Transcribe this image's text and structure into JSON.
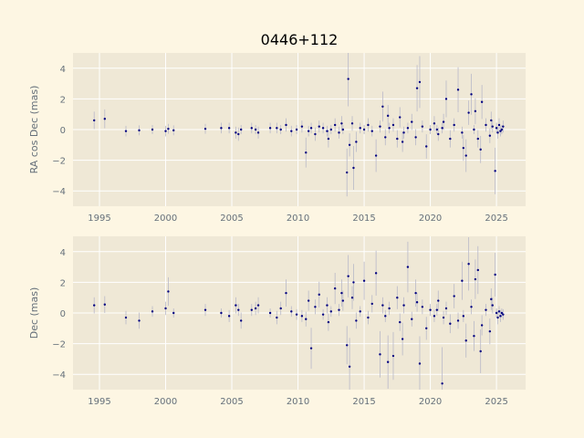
{
  "chart_data": [
    {
      "type": "scatter",
      "title": "0446+112",
      "ylabel": "RA cos Dec (mas)",
      "xlabel": "",
      "xlim": [
        1993.0,
        2027.2
      ],
      "ylim": [
        -5,
        5
      ],
      "xticks": [
        "1995",
        "2000",
        "2005",
        "2010",
        "2015",
        "2020",
        "2025"
      ],
      "yticks": [
        "4",
        "2",
        "0",
        "−2",
        "−4"
      ],
      "grid": true,
      "series": [
        {
          "x": [
            1994.6,
            1995.4,
            1997.0,
            1998.0,
            1999.0,
            2000.0,
            2000.2,
            2000.6,
            2003.0,
            2004.2,
            2004.8,
            2005.3,
            2005.5,
            2005.7,
            2006.5,
            2006.8,
            2007.0,
            2007.9,
            2008.4,
            2008.7,
            2009.1,
            2009.5,
            2009.9,
            2010.3,
            2010.8,
            2011.0,
            2011.3,
            2011.6,
            2011.9,
            2012.2,
            2012.5,
            2012.8,
            2013.1,
            2013.4,
            2013.7,
            2013.8,
            2013.9,
            2014.1,
            2014.4,
            2014.7,
            2015.0,
            2015.3,
            2015.6,
            2015.9,
            2016.2,
            2016.4,
            2016.6,
            2016.9,
            2017.2,
            2017.5,
            2017.7,
            2018.0,
            2018.3,
            2018.6,
            2018.9,
            2019.2,
            2019.4,
            2019.7,
            2020.0,
            2020.3,
            2020.6,
            2020.9,
            2021.2,
            2021.5,
            2021.8,
            2022.1,
            2022.4,
            2022.7,
            2022.9,
            2023.1,
            2023.3,
            2023.6,
            2023.9,
            2024.2,
            2024.5,
            2024.7,
            2024.9,
            2025.0,
            2025.1,
            2025.2,
            2025.3,
            2025.4,
            2025.5,
            2012.3,
            2014.2,
            2016.8,
            2019.0,
            2021.0,
            2022.5,
            2023.8,
            2024.6,
            2010.6,
            2013.3,
            2017.9,
            2020.5,
            2023.4
          ],
          "y": [
            0.6,
            0.7,
            -0.1,
            -0.05,
            0.0,
            -0.1,
            0.05,
            -0.05,
            0.05,
            0.1,
            0.1,
            -0.2,
            -0.3,
            0.0,
            0.1,
            0.0,
            -0.2,
            0.1,
            0.1,
            0.0,
            0.3,
            -0.1,
            0.0,
            0.2,
            -0.1,
            0.1,
            -0.3,
            0.2,
            0.1,
            -0.1,
            0.0,
            0.3,
            -0.2,
            0.0,
            -2.8,
            3.3,
            -1.0,
            0.4,
            -0.8,
            0.1,
            0.0,
            0.3,
            -0.1,
            -1.7,
            0.2,
            1.5,
            -0.5,
            0.1,
            0.3,
            -0.6,
            0.8,
            -0.2,
            0.1,
            0.5,
            -0.5,
            3.1,
            0.2,
            -1.1,
            0.0,
            0.4,
            -0.3,
            0.1,
            2.0,
            -0.6,
            0.3,
            2.6,
            -0.2,
            -1.7,
            1.1,
            2.3,
            0.0,
            -0.6,
            1.8,
            0.3,
            -0.4,
            0.2,
            -2.7,
            0.1,
            -0.2,
            0.3,
            -0.1,
            0.0,
            0.2,
            -0.6,
            -2.5,
            0.9,
            2.7,
            0.5,
            -1.2,
            -1.3,
            0.6,
            -1.5,
            0.4,
            -0.8,
            0.0,
            1.2
          ]
        }
      ]
    },
    {
      "type": "scatter",
      "title": "",
      "ylabel": "Dec (mas)",
      "xlabel": "",
      "xlim": [
        1993.0,
        2027.2
      ],
      "ylim": [
        -5,
        5
      ],
      "xticks": [
        "1995",
        "2000",
        "2005",
        "2010",
        "2015",
        "2020",
        "2025"
      ],
      "yticks": [
        "4",
        "2",
        "0",
        "−2",
        "−4"
      ],
      "grid": true,
      "series": [
        {
          "x": [
            1994.6,
            1995.4,
            1997.0,
            1998.0,
            1999.0,
            2000.0,
            2000.2,
            2000.6,
            2003.0,
            2004.2,
            2004.8,
            2005.3,
            2005.5,
            2005.7,
            2006.5,
            2006.8,
            2007.0,
            2007.9,
            2008.4,
            2008.7,
            2009.1,
            2009.5,
            2009.9,
            2010.3,
            2010.8,
            2011.0,
            2011.3,
            2011.6,
            2011.9,
            2012.2,
            2012.5,
            2012.8,
            2013.1,
            2013.4,
            2013.7,
            2013.8,
            2013.9,
            2014.1,
            2014.4,
            2014.7,
            2015.0,
            2015.3,
            2015.6,
            2015.9,
            2016.2,
            2016.4,
            2016.6,
            2016.9,
            2017.2,
            2017.5,
            2017.7,
            2018.0,
            2018.3,
            2018.6,
            2018.9,
            2019.2,
            2019.4,
            2019.7,
            2020.0,
            2020.3,
            2020.6,
            2020.9,
            2021.2,
            2021.5,
            2021.8,
            2022.1,
            2022.4,
            2022.7,
            2022.9,
            2023.1,
            2023.3,
            2023.6,
            2023.9,
            2024.2,
            2024.5,
            2024.7,
            2024.9,
            2025.0,
            2025.1,
            2025.2,
            2025.3,
            2025.4,
            2025.5,
            2012.3,
            2014.2,
            2016.8,
            2019.0,
            2021.0,
            2022.5,
            2023.8,
            2024.6,
            2010.6,
            2013.3,
            2017.9,
            2020.5,
            2023.4
          ],
          "y": [
            0.5,
            0.55,
            -0.3,
            -0.5,
            0.1,
            0.3,
            1.4,
            0.0,
            0.2,
            0.0,
            -0.2,
            0.5,
            0.2,
            -0.5,
            0.2,
            0.3,
            0.5,
            0.0,
            -0.3,
            0.3,
            1.3,
            0.1,
            -0.1,
            -0.2,
            0.8,
            -2.3,
            0.4,
            1.2,
            -0.1,
            0.5,
            0.1,
            1.6,
            0.2,
            0.8,
            -2.1,
            2.4,
            -3.5,
            1.0,
            -0.5,
            0.1,
            2.1,
            -0.3,
            0.6,
            2.6,
            -2.7,
            0.5,
            -0.2,
            0.3,
            -2.8,
            1.0,
            -0.6,
            0.5,
            3.0,
            -0.4,
            1.3,
            -3.3,
            0.4,
            -1.0,
            0.2,
            -0.2,
            0.8,
            -4.6,
            0.3,
            -0.7,
            1.1,
            -0.5,
            2.1,
            -1.8,
            3.2,
            0.4,
            -1.5,
            2.8,
            -0.8,
            0.2,
            -1.2,
            0.5,
            2.5,
            0.0,
            -0.3,
            0.1,
            -0.2,
            0.0,
            -0.1,
            -0.6,
            2.0,
            -3.2,
            0.7,
            -0.3,
            -0.2,
            -2.5,
            0.9,
            -0.4,
            1.3,
            -1.7,
            0.2,
            2.2
          ]
        }
      ]
    }
  ],
  "colors": {
    "figure_bg": "#fdf6e3",
    "axes_bg": "#efe8d6",
    "grid": "#ffffff",
    "marker": "#000080",
    "errorbar": "#b8b8c8",
    "text": "#65707a"
  }
}
